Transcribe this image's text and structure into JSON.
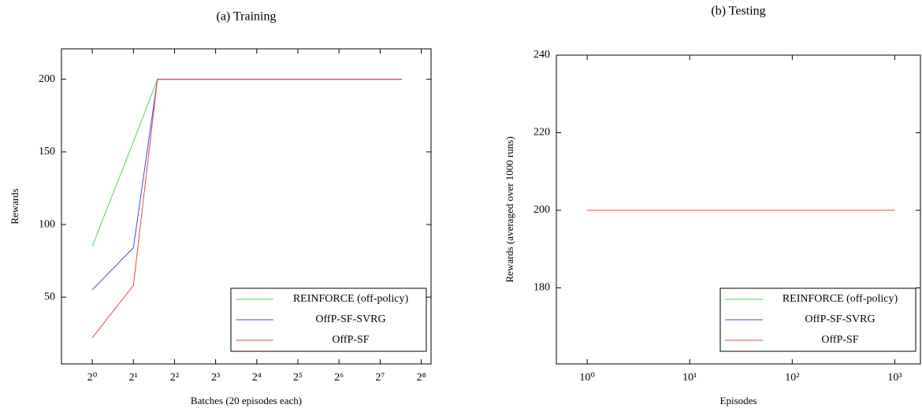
{
  "chart_data": [
    {
      "type": "line",
      "title": "(a) Training",
      "x_label": "Batches (20 episodes each)",
      "y_label": "Rewards",
      "x": [
        1,
        2,
        3,
        185
      ],
      "series": [
        {
          "name": "REINFORCE (off-policy)",
          "color": "#44dd44",
          "values": [
            85,
            157,
            200,
            200
          ]
        },
        {
          "name": "OffP-SF-SVRG",
          "color": "#4444ee",
          "values": [
            55,
            84,
            200,
            200
          ]
        },
        {
          "name": "OffP-SF",
          "color": "#ee4444",
          "values": [
            22,
            58,
            200,
            200
          ]
        }
      ],
      "x_scale": "log",
      "log_base": 2,
      "xlim": [
        0.595,
        302
      ],
      "xticks": [
        {
          "value": 1,
          "label": "2⁰"
        },
        {
          "value": 2,
          "label": "2¹"
        },
        {
          "value": 4,
          "label": "2²"
        },
        {
          "value": 8,
          "label": "2³"
        },
        {
          "value": 16,
          "label": "2⁴"
        },
        {
          "value": 32,
          "label": "2⁵"
        },
        {
          "value": 64,
          "label": "2⁶"
        },
        {
          "value": 128,
          "label": "2⁷"
        },
        {
          "value": 256,
          "label": "2⁸"
        }
      ],
      "ylim": [
        4,
        221
      ],
      "yticks": [
        50,
        100,
        150,
        200
      ],
      "legend": "lower right"
    },
    {
      "type": "line",
      "title": "(b) Testing",
      "x_label": "Episodes",
      "y_label": "Rewards (averaged over 1000 runs)",
      "x": [
        1,
        1000
      ],
      "series": [
        {
          "name": "REINFORCE (off-policy)",
          "color": "#44dd44",
          "values": [
            200,
            200
          ]
        },
        {
          "name": "OffP-SF-SVRG",
          "color": "#4444ee",
          "values": [
            200,
            200
          ]
        },
        {
          "name": "OffP-SF",
          "color": "#ee4444",
          "values": [
            200,
            200
          ]
        }
      ],
      "x_scale": "log",
      "log_base": 10,
      "xlim": [
        0.5,
        1780
      ],
      "xticks": [
        {
          "value": 1,
          "label": "10⁰"
        },
        {
          "value": 10,
          "label": "10¹"
        },
        {
          "value": 100,
          "label": "10²"
        },
        {
          "value": 1000,
          "label": "10³"
        }
      ],
      "ylim": [
        160.4,
        240
      ],
      "yticks": [
        180,
        200,
        220,
        240
      ],
      "legend": "lower right"
    }
  ]
}
